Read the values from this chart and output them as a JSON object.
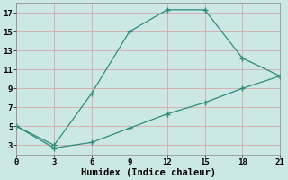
{
  "line1_x": [
    0,
    3,
    6,
    9,
    12,
    15,
    18,
    21
  ],
  "line1_y": [
    5.0,
    3.0,
    8.5,
    15.0,
    17.3,
    17.3,
    12.2,
    10.3
  ],
  "line2_x": [
    0,
    3,
    6,
    9,
    12,
    15,
    18,
    21
  ],
  "line2_y": [
    5.0,
    2.7,
    3.3,
    4.8,
    6.3,
    7.5,
    9.0,
    10.3
  ],
  "line_color": "#2d8b7a",
  "bg_color": "#cce8e4",
  "grid_color": "#d4a8aa",
  "xlabel": "Humidex (Indice chaleur)",
  "xlim": [
    0,
    21
  ],
  "ylim": [
    2,
    18
  ],
  "xticks": [
    0,
    3,
    6,
    9,
    12,
    15,
    18,
    21
  ],
  "yticks": [
    3,
    5,
    7,
    9,
    11,
    13,
    15,
    17
  ],
  "tick_fontsize": 6.5,
  "xlabel_fontsize": 7.5,
  "marker": "+",
  "markersize": 4.5,
  "linewidth": 0.9
}
